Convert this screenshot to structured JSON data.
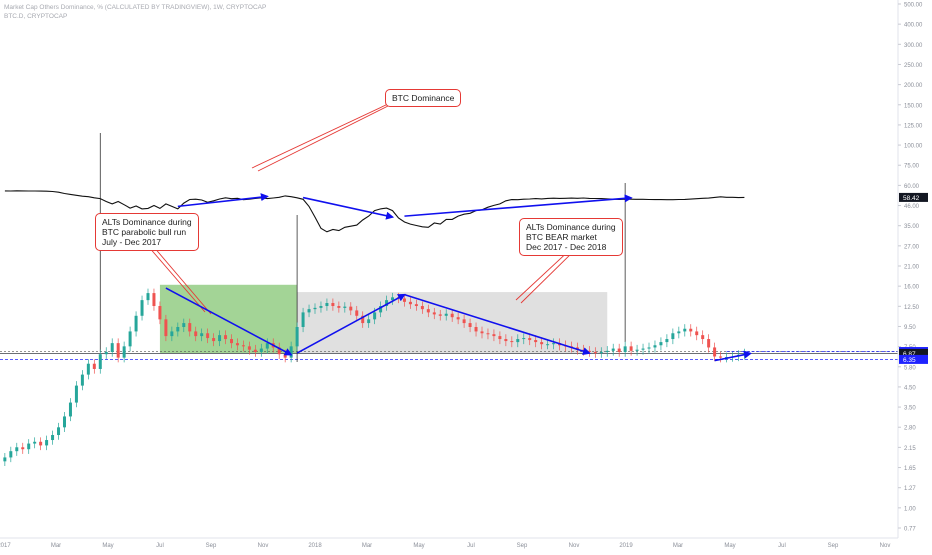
{
  "header": {
    "title": "Market Cap Others Dominance, % (CALCULATED BY TRADINGVIEW), 1W, CRYPTOCAP",
    "subtitle": "BTC.D, CRYPTOCAP"
  },
  "callouts": {
    "btc_dominance": "BTC Dominance",
    "alts_bull": [
      "ALTs Dominance during",
      "BTC parabolic bull run",
      "July - Dec 2017"
    ],
    "alts_bear": [
      "ALTs Dominance during",
      "BTC BEAR market",
      "Dec 2017 - Dec 2018"
    ]
  },
  "price_badges": [
    {
      "label": "58.42",
      "bg": "#131722",
      "fg": "#ffffff"
    },
    {
      "label": "7.04",
      "bg": "#1e22ff",
      "fg": "#ffffff"
    },
    {
      "label": "6.87",
      "bg": "#131722",
      "fg": "#ffffff"
    },
    {
      "label": "6.35",
      "bg": "#1e22ff",
      "fg": "#ffffff"
    }
  ],
  "colors": {
    "up": "#26a69a",
    "down": "#ef5350",
    "arrow": "#1010ee",
    "callout_border": "#e53935",
    "green_zone": "#7cc26a",
    "grey_zone": "#d5d5d5",
    "btc_line": "#111111"
  },
  "chart_data": {
    "type": "candlestick",
    "interval": "1W",
    "yscale": "log",
    "y_axis_ticks": [
      "500.00",
      "400.00",
      "300.00",
      "250.00",
      "200.00",
      "150.00",
      "125.00",
      "100.00",
      "75.00",
      "60.00",
      "46.00",
      "35.00",
      "27.00",
      "21.00",
      "16.00",
      "12.50",
      "9.50",
      "7.50",
      "5.80",
      "4.50",
      "3.50",
      "2.80",
      "2.15",
      "1.65",
      "1.27",
      "1.00",
      "0.77"
    ],
    "x_axis_ticks": [
      "2017",
      "Mar",
      "May",
      "Jul",
      "Sep",
      "Nov",
      "2018",
      "Mar",
      "May",
      "Jul",
      "Sep",
      "Nov",
      "2019",
      "Mar",
      "May",
      "Jul",
      "Sep",
      "Nov"
    ],
    "dates": [
      "2017-01-02",
      "2017-01-09",
      "2017-01-16",
      "2017-01-23",
      "2017-01-30",
      "2017-02-06",
      "2017-02-13",
      "2017-02-20",
      "2017-02-27",
      "2017-03-06",
      "2017-03-13",
      "2017-03-20",
      "2017-03-27",
      "2017-04-03",
      "2017-04-10",
      "2017-04-17",
      "2017-04-24",
      "2017-05-01",
      "2017-05-08",
      "2017-05-15",
      "2017-05-22",
      "2017-05-29",
      "2017-06-05",
      "2017-06-12",
      "2017-06-19",
      "2017-06-26",
      "2017-07-03",
      "2017-07-10",
      "2017-07-17",
      "2017-07-24",
      "2017-07-31",
      "2017-08-07",
      "2017-08-14",
      "2017-08-21",
      "2017-08-28",
      "2017-09-04",
      "2017-09-11",
      "2017-09-18",
      "2017-09-25",
      "2017-10-02",
      "2017-10-09",
      "2017-10-16",
      "2017-10-23",
      "2017-10-30",
      "2017-11-06",
      "2017-11-13",
      "2017-11-20",
      "2017-11-27",
      "2017-12-04",
      "2017-12-11",
      "2017-12-18",
      "2017-12-25",
      "2018-01-01",
      "2018-01-08",
      "2018-01-15",
      "2018-01-22",
      "2018-01-29",
      "2018-02-05",
      "2018-02-12",
      "2018-02-19",
      "2018-02-26",
      "2018-03-05",
      "2018-03-12",
      "2018-03-19",
      "2018-03-26",
      "2018-04-02",
      "2018-04-09",
      "2018-04-16",
      "2018-04-23",
      "2018-04-30",
      "2018-05-07",
      "2018-05-14",
      "2018-05-21",
      "2018-05-28",
      "2018-06-04",
      "2018-06-11",
      "2018-06-18",
      "2018-06-25",
      "2018-07-02",
      "2018-07-09",
      "2018-07-16",
      "2018-07-23",
      "2018-07-30",
      "2018-08-06",
      "2018-08-13",
      "2018-08-20",
      "2018-08-27",
      "2018-09-03",
      "2018-09-10",
      "2018-09-17",
      "2018-09-24",
      "2018-10-01",
      "2018-10-08",
      "2018-10-15",
      "2018-10-22",
      "2018-10-29",
      "2018-11-05",
      "2018-11-12",
      "2018-11-19",
      "2018-11-26",
      "2018-12-03",
      "2018-12-10",
      "2018-12-17",
      "2018-12-24",
      "2018-12-31",
      "2019-01-07",
      "2019-01-14",
      "2019-01-21",
      "2019-01-28",
      "2019-02-04",
      "2019-02-11",
      "2019-02-18",
      "2019-02-25",
      "2019-03-04",
      "2019-03-11",
      "2019-03-18",
      "2019-03-25",
      "2019-04-01",
      "2019-04-08",
      "2019-04-15",
      "2019-04-22",
      "2019-04-29",
      "2019-05-06",
      "2019-05-13",
      "2019-05-20"
    ],
    "close": [
      1.75,
      1.9,
      2.0,
      1.95,
      2.1,
      2.15,
      2.05,
      2.2,
      2.35,
      2.6,
      3.0,
      3.6,
      4.5,
      5.2,
      6.0,
      5.6,
      6.8,
      7.0,
      7.8,
      6.5,
      7.5,
      9.0,
      11.0,
      13.5,
      14.8,
      12.5,
      10.5,
      8.5,
      9.0,
      9.5,
      10.0,
      9.0,
      8.5,
      8.8,
      8.3,
      8.0,
      8.6,
      8.2,
      7.8,
      7.6,
      7.5,
      7.2,
      7.0,
      7.3,
      7.8,
      7.4,
      6.8,
      6.5,
      7.5,
      9.5,
      11.5,
      12.0,
      12.2,
      12.5,
      13.0,
      12.5,
      12.2,
      12.4,
      11.8,
      11.0,
      10.0,
      10.5,
      11.5,
      12.5,
      13.5,
      14.0,
      13.8,
      13.2,
      12.8,
      12.5,
      12.0,
      11.5,
      11.2,
      11.0,
      11.3,
      10.8,
      10.5,
      10.0,
      9.5,
      9.0,
      8.8,
      8.7,
      8.5,
      8.2,
      8.0,
      7.9,
      8.2,
      8.3,
      8.1,
      7.9,
      7.7,
      7.7,
      7.8,
      7.6,
      7.5,
      7.4,
      7.2,
      7.1,
      7.0,
      6.9,
      7.0,
      7.1,
      7.3,
      7.0,
      7.5,
      7.1,
      7.2,
      7.3,
      7.4,
      7.6,
      7.9,
      8.2,
      8.8,
      9.0,
      9.3,
      9.0,
      8.6,
      8.2,
      7.4,
      6.6,
      6.5,
      6.55,
      6.6,
      6.75,
      6.87
    ],
    "btc_dominance": [
      86.5,
      86.2,
      86.8,
      86.3,
      86.0,
      85.8,
      85.4,
      84.9,
      83.5,
      80.0,
      74.0,
      70.0,
      66.3,
      63.0,
      61.0,
      57.0,
      54.5,
      49.0,
      47.5,
      49.0,
      47.0,
      45.0,
      46.2,
      44.5,
      44.8,
      46.5,
      44.8,
      47.5,
      46.0,
      44.5,
      48.0,
      51.5,
      52.6,
      50.0,
      48.5,
      49.5,
      53.0,
      57.0,
      54.0,
      55.5,
      51.0,
      52.5,
      55.2,
      57.0,
      54.5,
      56.5,
      59.0,
      64.0,
      61.0,
      57.0,
      52.0,
      46.0,
      40.0,
      34.5,
      33.0,
      34.0,
      33.5,
      35.0,
      35.5,
      36.0,
      38.5,
      40.5,
      43.5,
      44.5,
      45.0,
      43.5,
      39.5,
      37.5,
      36.5,
      35.8,
      35.2,
      35.0,
      37.0,
      36.5,
      38.8,
      38.8,
      40.5,
      41.5,
      42.0,
      43.5,
      44.0,
      45.5,
      46.6,
      47.5,
      49.5,
      51.2,
      51.0,
      52.5,
      53.2,
      54.5,
      53.5,
      55.0,
      55.8,
      55.0,
      55.5,
      56.0,
      55.5,
      56.5,
      55.2,
      54.8,
      54.5,
      53.5,
      52.5,
      51.8,
      52.5,
      52.4,
      52.2,
      52.0,
      51.5,
      51.3,
      51.3,
      51.0,
      51.0,
      51.6,
      51.9,
      52.7,
      54.2,
      55.3,
      56.2,
      58.4,
      60.8,
      58.8,
      58.8,
      57.9,
      58.42
    ],
    "zones": [
      {
        "name": "ALTs Dominance during BTC parabolic bull run",
        "from": "2017-07-03",
        "to": "2017-12-11",
        "top": 16.5,
        "bottom": 6.9
      },
      {
        "name": "ALTs Dominance during BTC BEAR market",
        "from": "2017-12-11",
        "to": "2018-12-10",
        "top": 15.0,
        "bottom": 6.9
      }
    ],
    "levels": [
      7.04,
      6.87,
      6.35
    ]
  }
}
